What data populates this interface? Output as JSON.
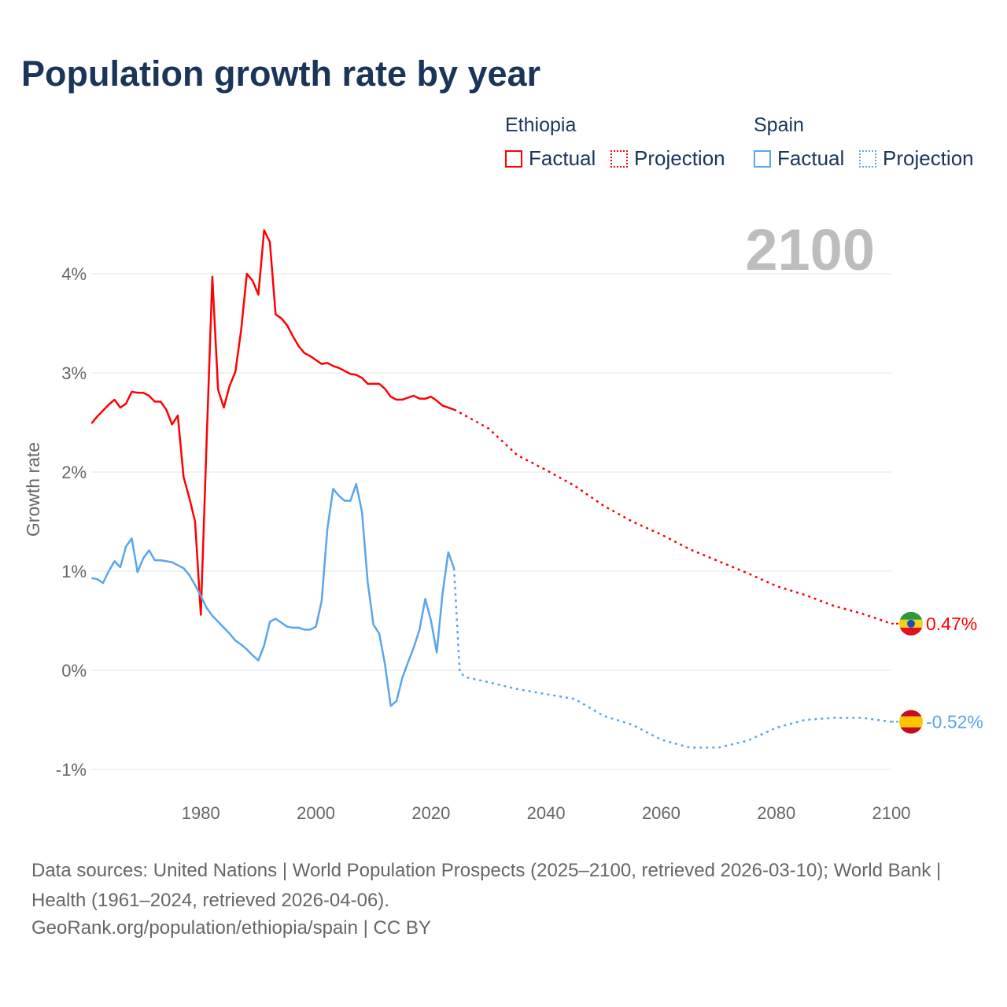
{
  "title": "Population growth rate by year",
  "legend": {
    "groups": [
      {
        "name": "Ethiopia",
        "factual": "Factual",
        "projection": "Projection",
        "color": "#ff0000"
      },
      {
        "name": "Spain",
        "factual": "Factual",
        "projection": "Projection",
        "color": "#5aa5ec"
      }
    ]
  },
  "year_display": "2100",
  "sources": "Data sources: United Nations | World Population Prospects (2025–2100, retrieved 2026-03-10); World Bank | Health (1961–2024, retrieved 2026-04-06).",
  "credit": "GeoRank.org/population/ethiopia/spain | CC BY",
  "chart_data": {
    "type": "line",
    "title": "Population growth rate by year",
    "ylabel": "Growth rate",
    "xlabel": "",
    "xlim": [
      1961,
      2100
    ],
    "ylim": [
      -1.2,
      4.6
    ],
    "x_ticks": [
      1980,
      2000,
      2020,
      2040,
      2060,
      2080,
      2100
    ],
    "x_tick_labels": [
      "1980",
      "2000",
      "2020",
      "2040",
      "2060",
      "2080",
      "2100"
    ],
    "y_ticks": [
      -1,
      0,
      1,
      2,
      3,
      4
    ],
    "y_tick_labels": [
      "-1%",
      "0%",
      "1%",
      "2%",
      "3%",
      "4%"
    ],
    "grid": true,
    "legend_position": "top-right",
    "series": [
      {
        "name": "Ethiopia",
        "color": "#ff0000",
        "end_label": "0.47%",
        "factual": {
          "start_year": 1961,
          "values": [
            2.49,
            2.56,
            2.62,
            2.68,
            2.73,
            2.65,
            2.69,
            2.81,
            2.8,
            2.8,
            2.77,
            2.71,
            2.71,
            2.63,
            2.48,
            2.57,
            1.95,
            1.74,
            1.5,
            0.56,
            2.3,
            3.97,
            2.83,
            2.65,
            2.87,
            3.01,
            3.43,
            4.0,
            3.93,
            3.79,
            4.44,
            4.32,
            3.59,
            3.55,
            3.48,
            3.37,
            3.27,
            3.2,
            3.17,
            3.13,
            3.09,
            3.1,
            3.07,
            3.05,
            3.02,
            2.99,
            2.98,
            2.95,
            2.89,
            2.89,
            2.89,
            2.84,
            2.76,
            2.73,
            2.73,
            2.75,
            2.77,
            2.74,
            2.74,
            2.76,
            2.72,
            2.67,
            2.65,
            2.63
          ]
        },
        "projection": {
          "years": [
            2025,
            2030,
            2035,
            2040,
            2045,
            2050,
            2055,
            2060,
            2065,
            2070,
            2075,
            2080,
            2085,
            2090,
            2095,
            2100
          ],
          "values": [
            2.6,
            2.44,
            2.17,
            2.02,
            1.86,
            1.66,
            1.5,
            1.37,
            1.22,
            1.1,
            0.98,
            0.85,
            0.76,
            0.65,
            0.57,
            0.47
          ]
        }
      },
      {
        "name": "Spain",
        "color": "#5aa5ec",
        "end_label": "-0.52%",
        "factual": {
          "start_year": 1961,
          "values": [
            0.93,
            0.92,
            0.88,
            1.0,
            1.1,
            1.04,
            1.25,
            1.33,
            0.99,
            1.13,
            1.21,
            1.11,
            1.11,
            1.1,
            1.09,
            1.06,
            1.03,
            0.96,
            0.86,
            0.75,
            0.63,
            0.55,
            0.49,
            0.43,
            0.37,
            0.3,
            0.26,
            0.21,
            0.15,
            0.1,
            0.25,
            0.49,
            0.52,
            0.48,
            0.44,
            0.43,
            0.43,
            0.41,
            0.41,
            0.44,
            0.7,
            1.43,
            1.83,
            1.76,
            1.71,
            1.71,
            1.88,
            1.6,
            0.89,
            0.46,
            0.37,
            0.06,
            -0.36,
            -0.31,
            -0.08,
            0.08,
            0.23,
            0.41,
            0.72,
            0.5,
            0.18,
            0.77,
            1.19,
            1.03
          ]
        },
        "projection": {
          "years": [
            2025,
            2026,
            2030,
            2035,
            2040,
            2045,
            2050,
            2055,
            2060,
            2065,
            2070,
            2075,
            2080,
            2085,
            2090,
            2095,
            2100
          ],
          "values": [
            -0.02,
            -0.07,
            -0.12,
            -0.19,
            -0.24,
            -0.29,
            -0.46,
            -0.55,
            -0.7,
            -0.78,
            -0.78,
            -0.71,
            -0.58,
            -0.5,
            -0.48,
            -0.48,
            -0.52
          ]
        }
      }
    ]
  }
}
